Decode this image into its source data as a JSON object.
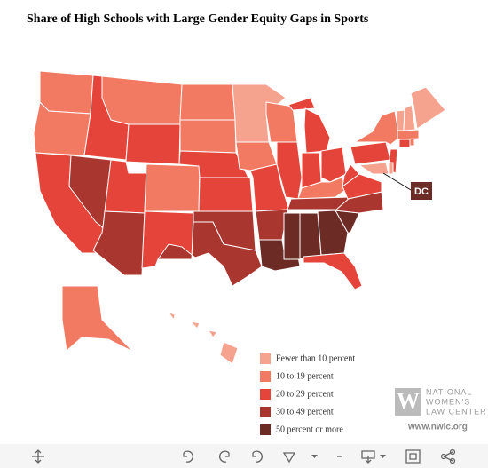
{
  "title": "Share of High Schools with Large Gender Equity Gaps in Sports",
  "legend": [
    {
      "label": "Fewer than 10 percent",
      "color": "#f5a28f"
    },
    {
      "label": "10 to 19 percent",
      "color": "#f37a62"
    },
    {
      "label": "20 to 29 percent",
      "color": "#e5443a"
    },
    {
      "label": "30 to 49 percent",
      "color": "#a9372f"
    },
    {
      "label": "50 percent or more",
      "color": "#6d2b25"
    }
  ],
  "dc_label": "DC",
  "logo": {
    "letter": "W",
    "lines": [
      "NATIONAL",
      "WOMEN'S",
      "LAW CENTER"
    ],
    "url": "www.nwlc.org"
  }
}
